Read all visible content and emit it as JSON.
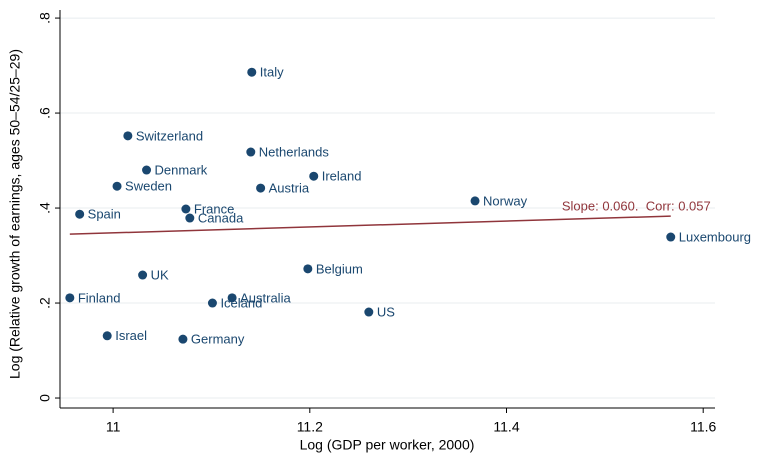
{
  "chart_data": {
    "type": "scatter",
    "xlabel": "Log (GDP per worker, 2000)",
    "ylabel": "Log (Relative growth of earnings, ages 50–54/25–29)",
    "labels": [
      "Italy",
      "Switzerland",
      "Netherlands",
      "Denmark",
      "Ireland",
      "Sweden",
      "Austria",
      "Norway",
      "Spain",
      "France",
      "Canada",
      "Luxembourg",
      "Belgium",
      "UK",
      "Finland",
      "Australia",
      "Iceland",
      "US",
      "Israel",
      "Germany"
    ],
    "series": [
      {
        "color": "#1a476f",
        "x": [
          11.141,
          11.015,
          11.14,
          11.034,
          11.204,
          11.004,
          11.15,
          11.368,
          10.966,
          11.074,
          11.078,
          11.567,
          11.198,
          11.03,
          10.956,
          11.121,
          11.101,
          11.26,
          10.994,
          11.071
        ],
        "values": [
          0.686,
          0.552,
          0.518,
          0.48,
          0.467,
          0.446,
          0.442,
          0.415,
          0.387,
          0.398,
          0.379,
          0.339,
          0.272,
          0.259,
          0.211,
          0.211,
          0.2,
          0.181,
          0.131,
          0.124
        ]
      }
    ],
    "fit_line": {
      "x": [
        10.956,
        11.567
      ],
      "values": [
        0.345,
        0.383
      ],
      "color": "#90353b",
      "annotation": "Slope: 0.060.  Corr: 0.057"
    },
    "xlim": [
      10.946,
      11.612
    ],
    "ylim": [
      -0.021,
      0.817
    ],
    "xticks": [
      11,
      11.2,
      11.4,
      11.6
    ],
    "yticks": [
      0,
      {
        "value": 0.2,
        "label": ".2"
      },
      {
        "value": 0.4,
        "label": ".4"
      },
      {
        "value": 0.6,
        "label": ".6"
      },
      {
        "value": 0.8,
        "label": ".8"
      }
    ],
    "grid": true
  }
}
